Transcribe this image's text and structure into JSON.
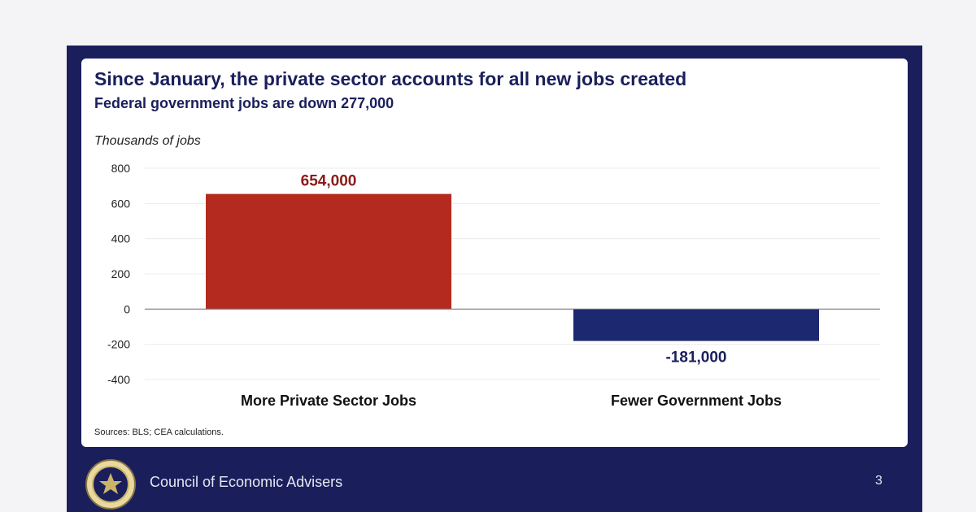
{
  "slide": {
    "footer_org": "Council of Economic Advisers",
    "page_number": "3",
    "source": "Sources: BLS; CEA calculations."
  },
  "colors": {
    "navy": "#1a1f5c",
    "bar_positive": "#b52a1f",
    "bar_negative": "#1c2870",
    "positive_label": "#8a1c18"
  },
  "chart_data": {
    "type": "bar",
    "title": "Since January, the private sector accounts for all new jobs created",
    "subtitle": "Federal government jobs are down 277,000",
    "ylabel": "Thousands of jobs",
    "categories": [
      "More Private Sector Jobs",
      "Fewer Government Jobs"
    ],
    "values": [
      654,
      -181
    ],
    "data_labels": [
      "654,000",
      "-181,000"
    ],
    "ylim": [
      -400,
      800
    ],
    "yticks": [
      800,
      600,
      400,
      200,
      0,
      -200,
      -400
    ],
    "ytick_labels": [
      "800",
      "600",
      "400",
      "200",
      "0",
      "-200",
      "-400"
    ],
    "grid": true,
    "legend": "none"
  }
}
